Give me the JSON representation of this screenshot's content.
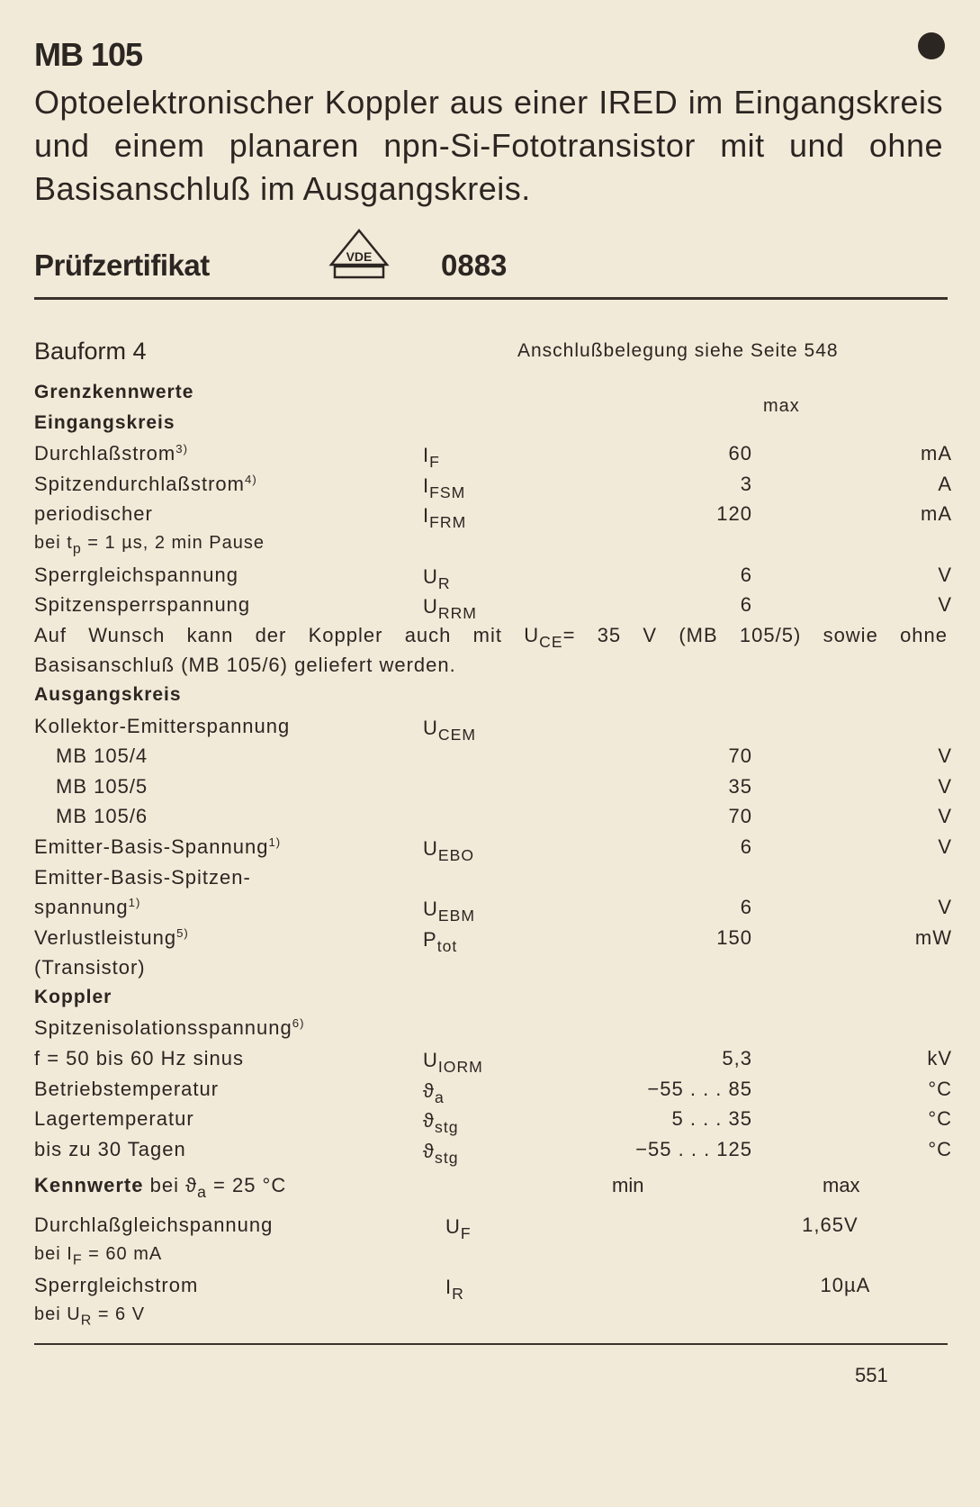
{
  "title": "MB 105",
  "description": "Optoelektronischer Koppler aus einer IRED im Eingangskreis und einem planaren npn-Si-Fototransistor mit und ohne Basisanschluß im Ausgangskreis.",
  "certificate": {
    "label": "Prüfzertifikat",
    "logo_text": "VDE",
    "number": "0883"
  },
  "bauform": "Bauform 4",
  "anschluss": "Anschlußbelegung siehe Seite 548",
  "limits": {
    "max_header": "max",
    "rows": [
      {
        "kind": "heading",
        "label": "Grenzkennwerte"
      },
      {
        "kind": "heading",
        "label": "Eingangskreis"
      },
      {
        "label": "Durchlaßstrom",
        "label_sup": "3)",
        "sym": "I",
        "sym_sub": "F",
        "value": "60",
        "unit": "mA"
      },
      {
        "label": "Spitzendurchlaßstrom",
        "label_sup": "4)",
        "sym": "I",
        "sym_sub": "FSM",
        "value": "3",
        "unit": "A"
      },
      {
        "label": "periodischer",
        "sym": "I",
        "sym_sub": "FRM",
        "value": "120",
        "unit": "mA"
      },
      {
        "kind": "small",
        "label": "bei t",
        "label_sub": "p",
        "label_post": " = 1 µs, 2 min Pause"
      },
      {
        "label": "Sperrgleichspannung",
        "sym": "U",
        "sym_sub": "R",
        "value": "6",
        "unit": "V"
      },
      {
        "label": "Spitzensperrspannung",
        "sym": "U",
        "sym_sub": "RRM",
        "value": "6",
        "unit": "V"
      },
      {
        "kind": "full",
        "label": "Auf Wunsch kann der Koppler auch mit U",
        "label_sub": "CE",
        "label_post": "= 35 V (MB 105/5) sowie ohne"
      },
      {
        "label": "Basisanschluß (MB 105/6) geliefert werden."
      },
      {
        "kind": "heading",
        "label": "Ausgangskreis"
      },
      {
        "label": "Kollektor-Emitterspannung",
        "sym": "U",
        "sym_sub": "CEM"
      },
      {
        "kind": "indent",
        "label": "MB 105/4",
        "value": "70",
        "unit": "V"
      },
      {
        "kind": "indent",
        "label": "MB 105/5",
        "value": "35",
        "unit": "V"
      },
      {
        "kind": "indent",
        "label": "MB 105/6",
        "value": "70",
        "unit": "V"
      },
      {
        "label": "Emitter-Basis-Spannung",
        "label_sup": "1)",
        "sym": "U",
        "sym_sub": "EBO",
        "value": "6",
        "unit": "V"
      },
      {
        "label": "Emitter-Basis-Spitzen-"
      },
      {
        "label": "spannung",
        "label_sup": "1)",
        "sym": "U",
        "sym_sub": "EBM",
        "value": "6",
        "unit": "V"
      },
      {
        "label": "Verlustleistung",
        "label_sup": "5)",
        "sym": "P",
        "sym_sub": "tot",
        "value": "150",
        "unit": "mW"
      },
      {
        "label": "(Transistor)"
      },
      {
        "kind": "heading",
        "label": "Koppler"
      },
      {
        "label": "Spitzenisolationsspannung",
        "label_sup": "6)"
      },
      {
        "label": "f = 50 bis 60 Hz sinus",
        "sym": "U",
        "sym_sub": "IORM",
        "value": "5,3",
        "unit": "kV"
      },
      {
        "label": "Betriebstemperatur",
        "sym": "ϑ",
        "sym_sub": "a",
        "value": "−55 . . . 85",
        "unit": "°C"
      },
      {
        "label": "Lagertemperatur",
        "sym": "ϑ",
        "sym_sub": "stg",
        "value": "5 . . . 35",
        "unit": "°C"
      },
      {
        "label": "bis zu 30 Tagen",
        "sym": "ϑ",
        "sym_sub": "stg",
        "value": "−55 . . . 125",
        "unit": "°C"
      }
    ]
  },
  "characteristics": {
    "heading_bold": "Kennwerte",
    "heading_pre": " bei ϑ",
    "heading_sub": "a",
    "heading_post": " = 25 °C",
    "min_header": "min",
    "max_header": "max",
    "rows": [
      {
        "label": "Durchlaßgleichspannung",
        "sym": "U",
        "sym_sub": "F",
        "value": "1,65",
        "unit": "V"
      },
      {
        "kind": "small",
        "label": "bei I",
        "label_sub": "F",
        "label_post": " = 60 mA"
      },
      {
        "label": "Sperrgleichstrom",
        "sym": "I",
        "sym_sub": "R",
        "value": "10",
        "unit": "µA"
      },
      {
        "kind": "small",
        "label": "bei U",
        "label_sub": "R",
        "label_post": " = 6 V"
      }
    ]
  },
  "page_number": "551"
}
